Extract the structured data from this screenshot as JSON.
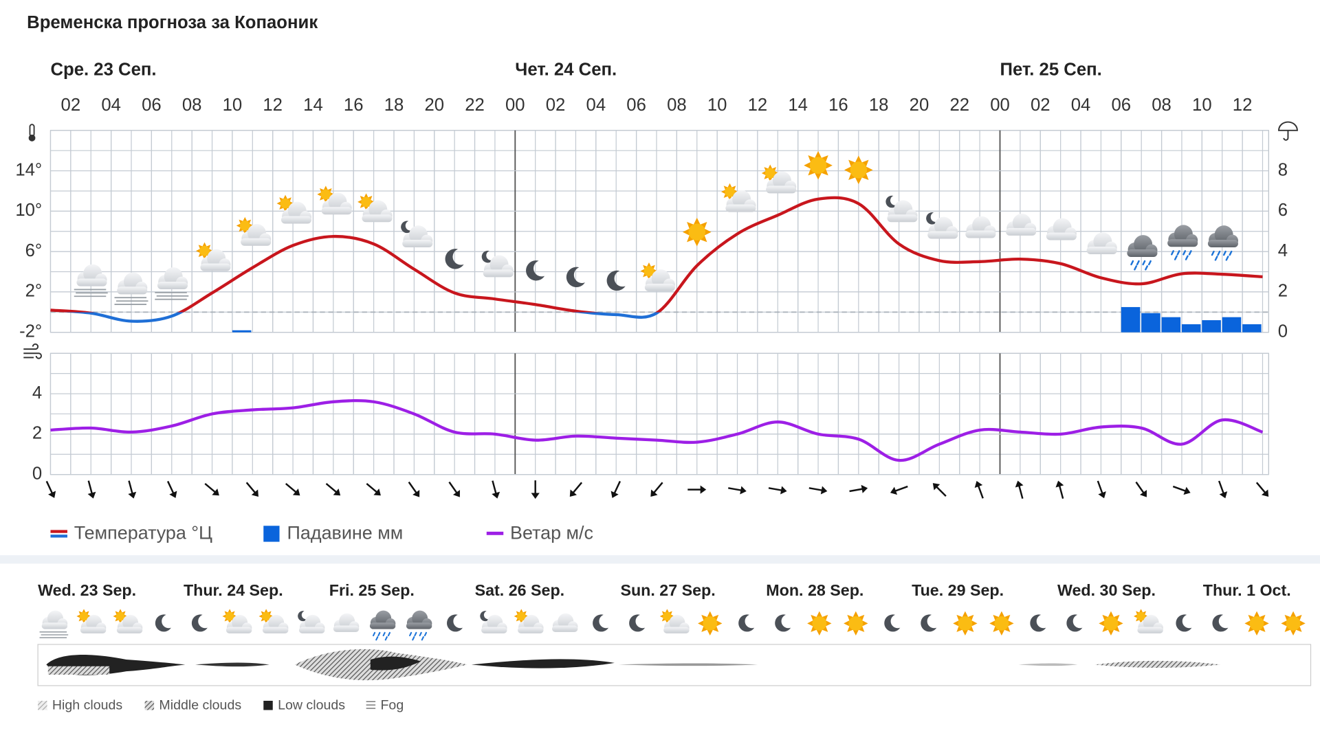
{
  "chart_data": [
    {
      "type": "line",
      "title": "Временска прогноза за Копаоник",
      "days": [
        "Сре. 23 Сеп.",
        "Чет. 24 Сеп.",
        "Пет. 25 Сеп."
      ],
      "xlim": [
        1,
        61.3
      ],
      "xticks": [
        {
          "value": 2,
          "label": "02"
        },
        {
          "value": 4,
          "label": "04"
        },
        {
          "value": 6,
          "label": "06"
        },
        {
          "value": 8,
          "label": "08"
        },
        {
          "value": 10,
          "label": "10"
        },
        {
          "value": 12,
          "label": "12"
        },
        {
          "value": 14,
          "label": "14"
        },
        {
          "value": 16,
          "label": "16"
        },
        {
          "value": 18,
          "label": "18"
        },
        {
          "value": 20,
          "label": "20"
        },
        {
          "value": 22,
          "label": "22"
        },
        {
          "value": 24,
          "label": "00"
        },
        {
          "value": 26,
          "label": "02"
        },
        {
          "value": 28,
          "label": "04"
        },
        {
          "value": 30,
          "label": "06"
        },
        {
          "value": 32,
          "label": "08"
        },
        {
          "value": 34,
          "label": "10"
        },
        {
          "value": 36,
          "label": "12"
        },
        {
          "value": 38,
          "label": "14"
        },
        {
          "value": 40,
          "label": "16"
        },
        {
          "value": 42,
          "label": "18"
        },
        {
          "value": 44,
          "label": "20"
        },
        {
          "value": 46,
          "label": "22"
        },
        {
          "value": 48,
          "label": "00"
        },
        {
          "value": 50,
          "label": "02"
        },
        {
          "value": 52,
          "label": "04"
        },
        {
          "value": 54,
          "label": "06"
        },
        {
          "value": 56,
          "label": "08"
        },
        {
          "value": 58,
          "label": "10"
        },
        {
          "value": 60,
          "label": "12"
        }
      ],
      "ylim": [
        -2,
        18
      ],
      "yticks": [
        {
          "value": -2,
          "label": "-2°"
        },
        {
          "value": 2,
          "label": "2°"
        },
        {
          "value": 6,
          "label": "6°"
        },
        {
          "value": 10,
          "label": "10°"
        },
        {
          "value": 14,
          "label": "14°"
        }
      ],
      "y2lim": [
        0,
        10
      ],
      "y2ticks": [
        0,
        2,
        4,
        6,
        8
      ],
      "grid": true,
      "series": [
        {
          "name": "Температура °Ц",
          "color": "#c8161d",
          "color_below_zero": "#1f6fd6",
          "x": [
            1,
            3,
            5,
            7,
            9,
            11,
            13,
            15,
            17,
            19,
            21,
            23,
            25,
            27,
            29,
            31,
            33,
            35,
            37,
            39,
            41,
            43,
            45,
            47,
            49,
            51,
            53,
            55,
            57,
            59,
            61
          ],
          "values": [
            0.2,
            -0.1,
            -0.9,
            -0.4,
            1.9,
            4.4,
            6.6,
            7.5,
            6.75,
            4.25,
            1.9,
            1.3,
            0.75,
            0.1,
            -0.25,
            -0.1,
            4.6,
            7.75,
            9.6,
            11.2,
            10.75,
            6.75,
            5.1,
            5.0,
            5.25,
            4.8,
            3.4,
            2.8,
            3.8,
            3.75,
            3.5
          ]
        },
        {
          "name": "Падавине мм",
          "type": "bar",
          "axis": "y2",
          "color": "#0a64dc",
          "x": [
            10,
            54,
            55,
            56,
            57,
            58,
            59,
            60
          ],
          "values": [
            0.1,
            1.25,
            0.95,
            0.75,
            0.4,
            0.6,
            0.75,
            0.4
          ]
        }
      ]
    },
    {
      "type": "line",
      "xlim": [
        1,
        61.3
      ],
      "ylim": [
        0,
        6
      ],
      "yticks": [
        0,
        2,
        4
      ],
      "grid": true,
      "series": [
        {
          "name": "Ветар м/с",
          "color": "#9d1fe6",
          "x": [
            1,
            3,
            5,
            7,
            9,
            11,
            13,
            15,
            17,
            19,
            21,
            23,
            25,
            27,
            29,
            31,
            33,
            35,
            37,
            39,
            41,
            43,
            45,
            47,
            49,
            51,
            53,
            55,
            57,
            59,
            61
          ],
          "values": [
            2.2,
            2.3,
            2.1,
            2.4,
            3.0,
            3.2,
            3.3,
            3.6,
            3.6,
            3.0,
            2.1,
            2.0,
            1.7,
            1.9,
            1.8,
            1.7,
            1.6,
            2.0,
            2.6,
            2.0,
            1.75,
            0.7,
            1.5,
            2.2,
            2.1,
            2.0,
            2.35,
            2.3,
            1.5,
            2.7,
            2.1
          ]
        }
      ],
      "wind_direction": [
        155,
        165,
        165,
        155,
        130,
        140,
        130,
        130,
        130,
        145,
        145,
        165,
        180,
        220,
        205,
        220,
        90,
        100,
        100,
        100,
        80,
        250,
        315,
        340,
        345,
        345,
        160,
        145,
        110,
        160,
        140
      ]
    }
  ],
  "overview": {
    "days": [
      "Wed. 23 Sep.",
      "Thur. 24 Sep.",
      "Fri. 25 Sep.",
      "Sat. 26 Sep.",
      "Sun. 27 Sep.",
      "Mon. 28 Sep.",
      "Tue. 29 Sep.",
      "Wed. 30 Sep.",
      "Thur. 1 Oct."
    ],
    "legend": [
      "High clouds",
      "Middle clouds",
      "Low clouds",
      "Fog"
    ]
  }
}
